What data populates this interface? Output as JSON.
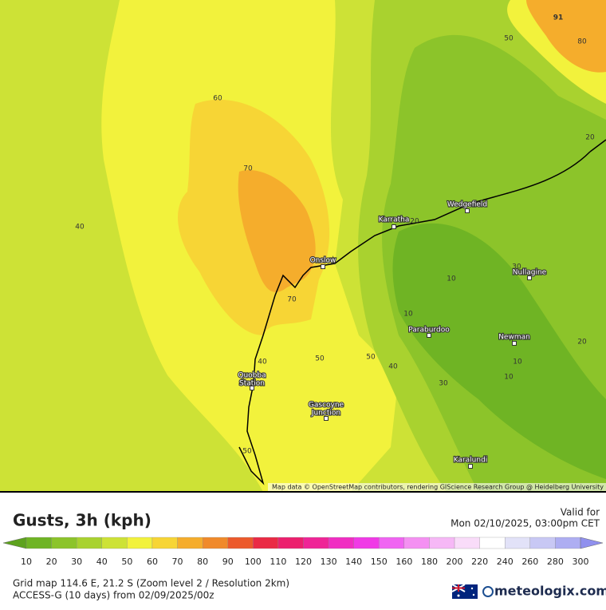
{
  "map": {
    "places": [
      {
        "name": [
          "Wedgefield"
        ]
      },
      {
        "name": [
          "Karratha"
        ]
      },
      {
        "name": [
          "Onslow"
        ]
      },
      {
        "name": [
          "Nullagine"
        ]
      },
      {
        "name": [
          "Paraburdoo"
        ]
      },
      {
        "name": [
          "Newman"
        ]
      },
      {
        "name": [
          "Quobba",
          "Station"
        ]
      },
      {
        "name": [
          "Gascoyne",
          "Junction"
        ]
      },
      {
        "name": [
          "Karalundi"
        ]
      }
    ],
    "contour_labels": [
      91,
      50,
      80,
      60,
      70,
      20,
      40,
      20,
      30,
      10,
      10,
      70,
      50,
      50,
      40,
      40,
      20,
      10,
      10,
      30,
      50
    ],
    "attribution": "Map data © OpenStreetMap contributors, rendering GIScience Research Group @ Heidelberg University"
  },
  "header": {
    "title": "Gusts, 3h (kph)",
    "valid_label": "Valid for",
    "valid_time": "Mon 02/10/2025, 03:00pm CET"
  },
  "legend": {
    "labels": [
      10,
      20,
      30,
      40,
      50,
      60,
      70,
      80,
      90,
      100,
      110,
      120,
      130,
      140,
      150,
      160,
      180,
      200,
      220,
      240,
      260,
      280,
      300
    ],
    "colors": [
      "#5da21e",
      "#6fb424",
      "#8cc42a",
      "#a9d22f",
      "#cde236",
      "#f2f23c",
      "#f7d535",
      "#f5ad2c",
      "#f08a2a",
      "#ec5a2c",
      "#ea2a45",
      "#ec206e",
      "#ef2597",
      "#f02ec2",
      "#f03ae6",
      "#f064f2",
      "#f490f2",
      "#f6b8f6",
      "#f9dcf9",
      "#ffffff",
      "#e2e2f8",
      "#c8c8f4",
      "#aeaef2",
      "#9090ee"
    ]
  },
  "footer": {
    "grid": "Grid map 114.6 E, 21.2 S (Zoom level 2 / Resolution 2km)",
    "model": "ACCESS-G (10 days)  from  02/09/2025/00z",
    "brand": "meteologix.com"
  }
}
